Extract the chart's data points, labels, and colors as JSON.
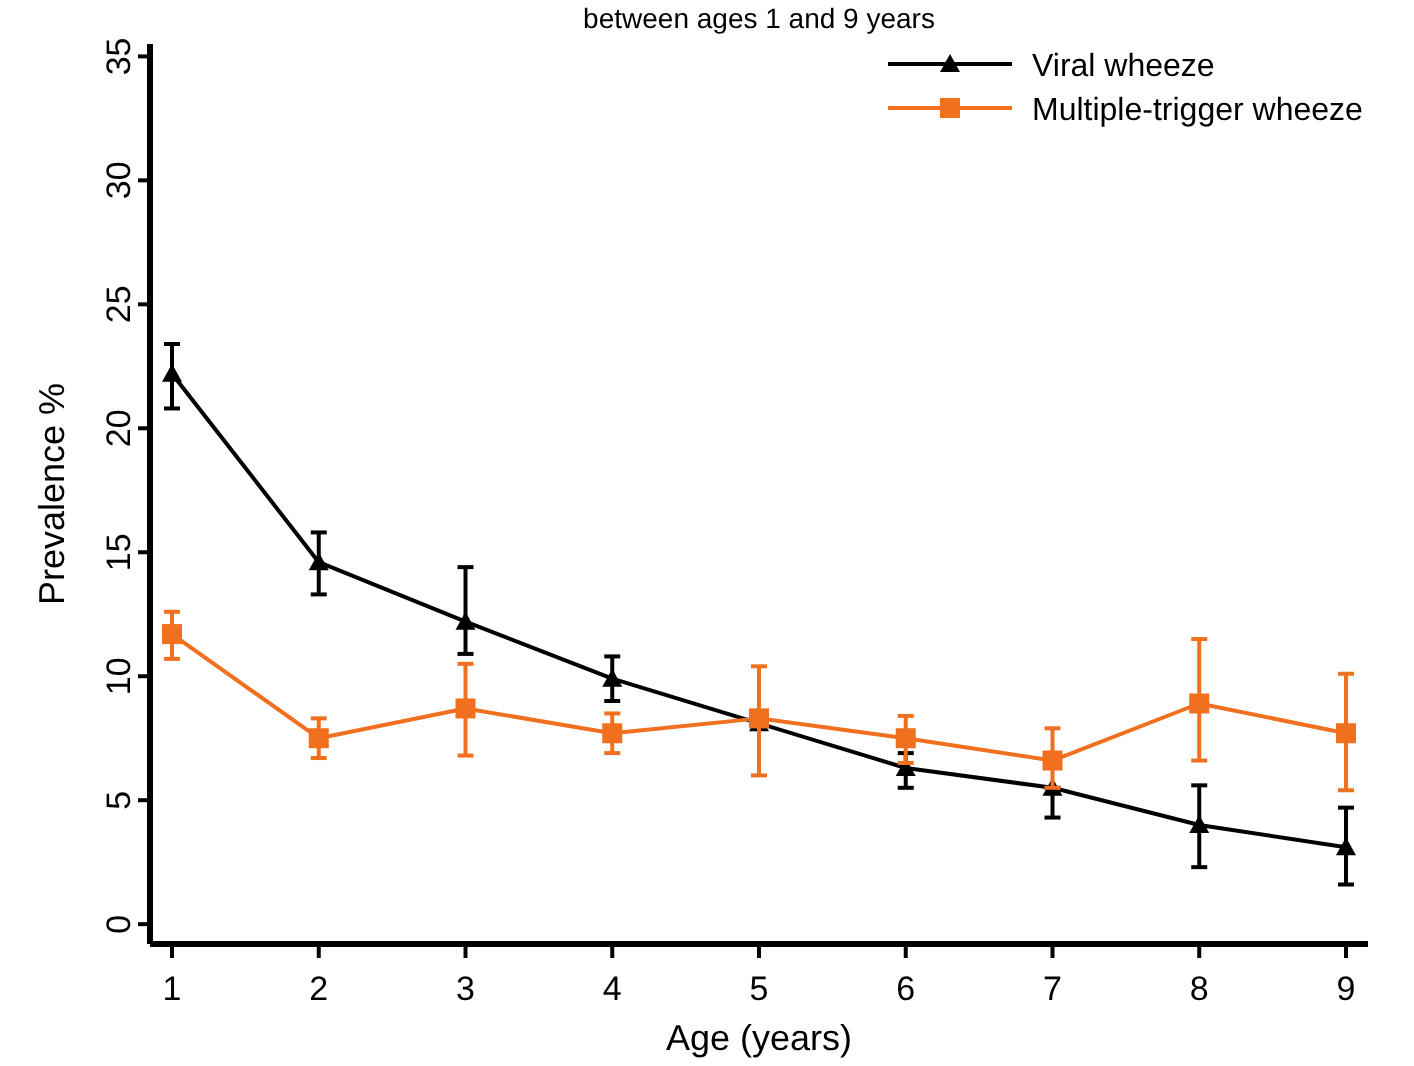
{
  "chart_data": {
    "type": "line",
    "title": "between ages 1 and 9 years",
    "xlabel": "Age (years)",
    "ylabel": "Prevalence %",
    "x": [
      1,
      2,
      3,
      4,
      5,
      6,
      7,
      8,
      9
    ],
    "xlim": [
      0.85,
      9.15
    ],
    "xticks": [
      1,
      2,
      3,
      4,
      5,
      6,
      7,
      8,
      9
    ],
    "ylim": [
      -0.8,
      35.5
    ],
    "yticks": [
      0,
      5,
      10,
      15,
      20,
      25,
      30,
      35
    ],
    "grid": false,
    "legend": "top right",
    "line_style": "solid",
    "series": [
      {
        "name": "Viral wheeze",
        "color": "#000000",
        "marker": "triangle",
        "values": [
          22.2,
          14.6,
          12.2,
          9.9,
          8.1,
          6.3,
          5.5,
          4.0,
          3.1
        ],
        "errors": [
          [
            20.8,
            23.4
          ],
          [
            13.3,
            15.8
          ],
          [
            10.9,
            14.4
          ],
          [
            9.0,
            10.8
          ],
          null,
          [
            5.5,
            6.9
          ],
          [
            4.3,
            5.5
          ],
          [
            2.3,
            5.6
          ],
          [
            1.6,
            4.7
          ]
        ]
      },
      {
        "name": "Multiple-trigger wheeze",
        "color": "#f07020",
        "marker": "square",
        "values": [
          11.7,
          7.5,
          8.7,
          7.7,
          8.3,
          7.5,
          6.6,
          8.9,
          7.7
        ],
        "errors": [
          [
            10.7,
            12.6
          ],
          [
            6.7,
            8.3
          ],
          [
            6.8,
            10.5
          ],
          [
            6.9,
            8.5
          ],
          [
            6.0,
            10.4
          ],
          [
            6.5,
            8.4
          ],
          [
            5.5,
            7.9
          ],
          [
            6.6,
            11.5
          ],
          [
            5.4,
            10.1
          ]
        ]
      }
    ]
  }
}
